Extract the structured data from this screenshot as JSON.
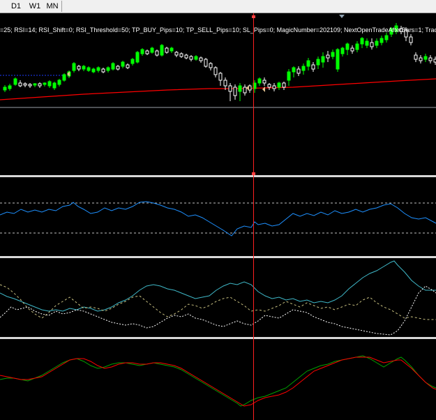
{
  "toolbar": {
    "timeframes": [
      "D1",
      "W1",
      "MN"
    ]
  },
  "main_chart": {
    "param_text": "=25; RSI=14; RSI_Shift=0; RSI_Threshold=50; TP_BUY_Pips=10; TP_SELL_Pips=10; SL_Pips=0; MagicNumber=202109; NextOpenTradeAfterBars=1; Trac"
  },
  "colors": {
    "background": "#000000",
    "bull_candle": "#00ff00",
    "bear_candle": "#ffffff",
    "moving_average": "#ff0000",
    "cursor_line": "#ff2020",
    "rsi_line": "#1e90ff",
    "indicator_cyan": "#3fb8c8",
    "indicator_dotted_white": "#ffffff",
    "indicator_dotted_yellow": "#c8c080",
    "oscillator_green": "#00a000",
    "oscillator_red": "#ff0000"
  },
  "icons": {
    "top_marker": "triangle-down-icon",
    "trade_arrow": "trade-arrow-icon"
  }
}
